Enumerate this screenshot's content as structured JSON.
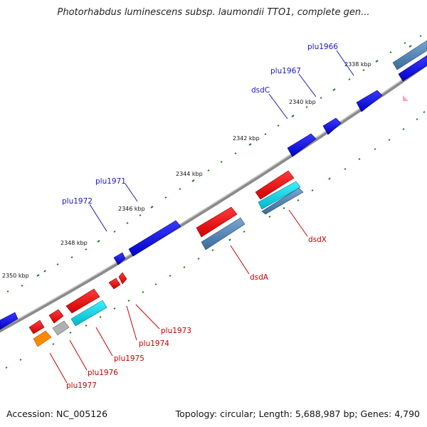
{
  "title": "Photorhabdus luminescens subsp. laumondii TTO1, complete gen...",
  "footer": {
    "accession": "Accession: NC_005126",
    "summary": "Topology: circular; Length: 5,688,987 bp; Genes: 4,790"
  },
  "tick_labels": [
    "2338 kbp",
    "2340 kbp",
    "2342 kbp",
    "2344 kbp",
    "2346 kbp",
    "2348 kbp",
    "2350 kbp"
  ],
  "gene_labels_top": [
    "plu1966",
    "plu1967",
    "dsdC",
    "plu1971",
    "plu1972"
  ],
  "gene_labels_bottom": [
    "dsdX",
    "dsdA",
    "plu1973",
    "plu1974",
    "plu1975",
    "plu1976",
    "plu1977"
  ],
  "colors": {
    "backbone": "#8a8a8a",
    "forward_gene": "#0000ee",
    "reverse_gene": "#ee0000",
    "cyan_gene": "#00d4e0",
    "steel_gene": "#4a7fb0",
    "orange_gene": "#ff8800",
    "gray_gene": "#b0b0b0",
    "tick": "#1f7a1f",
    "pink_marker": "#f4a6c8"
  }
}
